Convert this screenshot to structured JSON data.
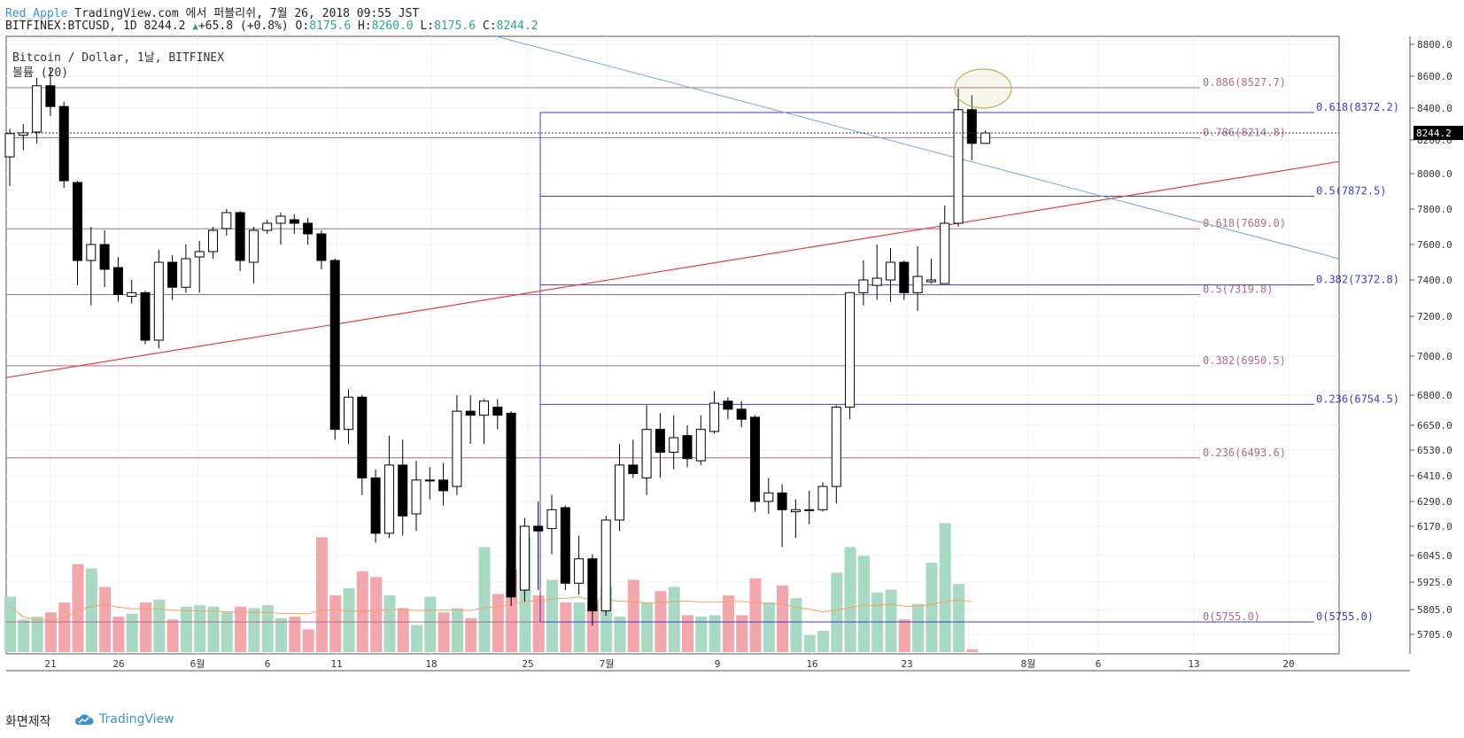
{
  "header": {
    "author": "Red_Apple",
    "published": " TradingView.com 에서 퍼블리쉬, 7월 26, 2018 09:55 JST",
    "symbol": "BITFINEX:BTCUSD, 1D 8244.2",
    "change": "+65.8 (+0.8%)",
    "o_label": " O:",
    "o_val": "8175.6",
    "h_label": " H:",
    "h_val": "8260.0",
    "l_label": " L:",
    "l_val": "8175.6",
    "c_label": " C:",
    "c_val": "8244.2"
  },
  "legend": {
    "title": "Bitcoin / Dollar, 1날, BITFINEX",
    "volume": "볼륨 (20)"
  },
  "footer": {
    "made_with": "화면제작",
    "brand": "TradingView"
  },
  "colors": {
    "up_volume": "#a8d9c2",
    "down_volume": "#f3a6ac",
    "red_line": "#ef3b3b",
    "blue_line": "#6fa8dc",
    "fib_purple": "#b0698e",
    "fib_blue": "#3b3bd6",
    "vol_ma": "#f5a25d",
    "ellipse": "#b9b458"
  },
  "chart_data": {
    "type": "candlestick",
    "price_axis_labels": [
      "8800.0",
      "8600.0",
      "8400.0",
      "8200.0",
      "8000.0",
      "7800.0",
      "7600.0",
      "7400.0",
      "7200.0",
      "7000.0",
      "6800.0",
      "6650.0",
      "6530.0",
      "6410.0",
      "6290.0",
      "6170.0",
      "6045.0",
      "5925.0",
      "5805.0",
      "5705.0"
    ],
    "last_price": "8244.2",
    "x_tick_labels": [
      "21",
      "26",
      "6월",
      "6",
      "11",
      "18",
      "25",
      "7월",
      "9",
      "16",
      "23",
      "8월",
      "6",
      "13",
      "20"
    ],
    "candles": [
      [
        8100,
        8240,
        7930,
        8270
      ],
      [
        8230,
        8245,
        8140,
        8300
      ],
      [
        8250,
        8540,
        8180,
        8590
      ],
      [
        8540,
        8410,
        8350,
        8650
      ],
      [
        8410,
        7960,
        7920,
        8440
      ],
      [
        7950,
        7510,
        7370,
        7960
      ],
      [
        7510,
        7600,
        7260,
        7700
      ],
      [
        7600,
        7460,
        7360,
        7680
      ],
      [
        7470,
        7320,
        7280,
        7530
      ],
      [
        7310,
        7330,
        7270,
        7400
      ],
      [
        7330,
        7080,
        7060,
        7340
      ],
      [
        7080,
        7500,
        7040,
        7570
      ],
      [
        7500,
        7360,
        7290,
        7540
      ],
      [
        7360,
        7520,
        7330,
        7600
      ],
      [
        7530,
        7560,
        7330,
        7620
      ],
      [
        7560,
        7680,
        7520,
        7700
      ],
      [
        7690,
        7780,
        7650,
        7800
      ],
      [
        7780,
        7510,
        7450,
        7790
      ],
      [
        7500,
        7680,
        7380,
        7700
      ],
      [
        7680,
        7720,
        7660,
        7740
      ],
      [
        7720,
        7760,
        7600,
        7780
      ],
      [
        7740,
        7720,
        7660,
        7770
      ],
      [
        7720,
        7660,
        7600,
        7750
      ],
      [
        7660,
        7510,
        7460,
        7680
      ],
      [
        7510,
        6630,
        6580,
        7520
      ],
      [
        6630,
        6790,
        6560,
        6830
      ],
      [
        6790,
        6400,
        6320,
        6800
      ],
      [
        6400,
        6140,
        6100,
        6440
      ],
      [
        6140,
        6460,
        6120,
        6600
      ],
      [
        6460,
        6220,
        6130,
        6580
      ],
      [
        6230,
        6390,
        6150,
        6480
      ],
      [
        6390,
        6390,
        6300,
        6450
      ],
      [
        6390,
        6340,
        6270,
        6470
      ],
      [
        6360,
        6720,
        6320,
        6800
      ],
      [
        6720,
        6700,
        6560,
        6800
      ],
      [
        6700,
        6770,
        6560,
        6780
      ],
      [
        6740,
        6700,
        6630,
        6780
      ],
      [
        6710,
        5860,
        5820,
        6720
      ],
      [
        5890,
        6170,
        5840,
        6210
      ],
      [
        6170,
        6150,
        5890,
        6290
      ],
      [
        6160,
        6250,
        6050,
        6320
      ],
      [
        6260,
        5920,
        5890,
        6270
      ],
      [
        5920,
        6030,
        5870,
        6130
      ],
      [
        6030,
        5800,
        5740,
        6050
      ],
      [
        5800,
        6200,
        5780,
        6220
      ],
      [
        6200,
        6460,
        6150,
        6560
      ],
      [
        6460,
        6420,
        6400,
        6580
      ],
      [
        6400,
        6630,
        6320,
        6750
      ],
      [
        6630,
        6520,
        6400,
        6710
      ],
      [
        6520,
        6590,
        6440,
        6700
      ],
      [
        6600,
        6490,
        6450,
        6650
      ],
      [
        6480,
        6630,
        6460,
        6700
      ],
      [
        6620,
        6760,
        6610,
        6820
      ],
      [
        6770,
        6730,
        6680,
        6790
      ],
      [
        6730,
        6680,
        6640,
        6770
      ],
      [
        6690,
        6290,
        6240,
        6700
      ],
      [
        6290,
        6330,
        6230,
        6400
      ],
      [
        6330,
        6250,
        6080,
        6370
      ],
      [
        6240,
        6250,
        6120,
        6300
      ],
      [
        6250,
        6250,
        6180,
        6340
      ],
      [
        6250,
        6360,
        6240,
        6380
      ],
      [
        6360,
        6740,
        6280,
        6750
      ],
      [
        6740,
        7330,
        6680,
        7330
      ],
      [
        7330,
        7400,
        7260,
        7510
      ],
      [
        7370,
        7410,
        7290,
        7600
      ],
      [
        7400,
        7500,
        7280,
        7580
      ],
      [
        7500,
        7330,
        7290,
        7510
      ],
      [
        7330,
        7420,
        7230,
        7590
      ],
      [
        7390,
        7400,
        7380,
        7520
      ],
      [
        7380,
        7720,
        7380,
        7820
      ],
      [
        7720,
        8390,
        7700,
        8520
      ],
      [
        8390,
        8180,
        8080,
        8480
      ],
      [
        8180,
        8244,
        8176,
        8260
      ]
    ],
    "volume_relative": [
      0.39,
      0.23,
      0.25,
      0.28,
      0.35,
      0.62,
      0.59,
      0.46,
      0.25,
      0.27,
      0.35,
      0.37,
      0.23,
      0.32,
      0.33,
      0.32,
      0.28,
      0.32,
      0.31,
      0.33,
      0.24,
      0.25,
      0.16,
      0.81,
      0.4,
      0.45,
      0.57,
      0.53,
      0.4,
      0.31,
      0.19,
      0.39,
      0.28,
      0.31,
      0.24,
      0.74,
      0.41,
      0.58,
      0.81,
      0.4,
      0.51,
      0.35,
      0.35,
      0.36,
      0.46,
      0.25,
      0.51,
      0.35,
      0.43,
      0.46,
      0.26,
      0.25,
      0.26,
      0.4,
      0.26,
      0.52,
      0.35,
      0.47,
      0.38,
      0.12,
      0.15,
      0.56,
      0.74,
      0.68,
      0.42,
      0.44,
      0.23,
      0.34,
      0.63,
      0.91,
      0.48,
      0.02
    ],
    "fib_left": [
      {
        "label": "0.886(8527.7)",
        "price": 8527.7
      },
      {
        "label": "0.786(8214.8)",
        "price": 8214.8
      },
      {
        "label": "0.618(7689.0)",
        "price": 7689.0
      },
      {
        "label": "0.5(7319.8)",
        "price": 7319.8
      },
      {
        "label": "0.382(6950.5)",
        "price": 6950.5
      },
      {
        "label": "0.236(6493.6)",
        "price": 6493.6
      },
      {
        "label": "0(5755.0)",
        "price": 5755.0
      }
    ],
    "fib_right": [
      {
        "label": "0.618(8372.2)",
        "price": 8372.2
      },
      {
        "label": "0.5(7872.5)",
        "price": 7872.5
      },
      {
        "label": "0.382(7372.8)",
        "price": 7372.8
      },
      {
        "label": "0.236(6754.5)",
        "price": 6754.5
      },
      {
        "label": "0(5755.0)",
        "price": 5755.0
      }
    ]
  }
}
